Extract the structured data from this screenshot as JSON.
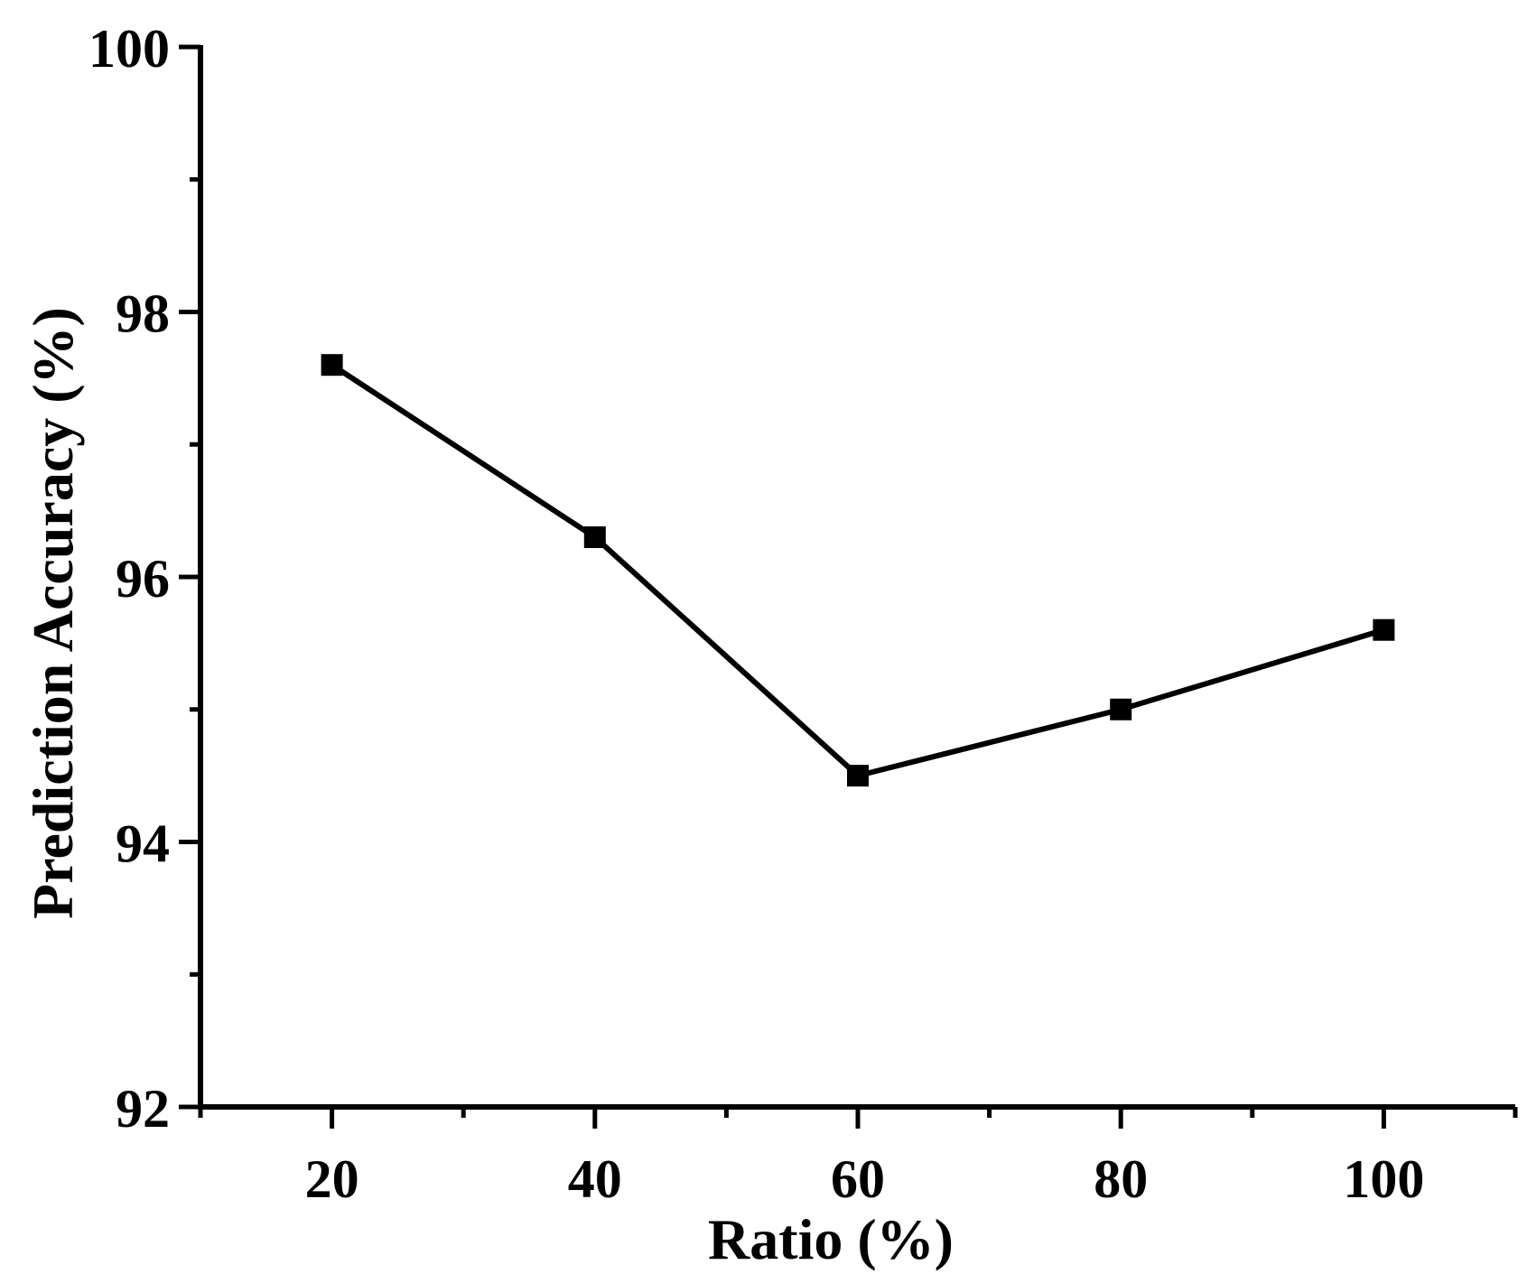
{
  "chart_data": {
    "type": "line",
    "title": "",
    "xlabel": "Ratio (%)",
    "ylabel": "Prediction Accuracy (%)",
    "x": [
      20,
      40,
      60,
      80,
      100
    ],
    "series": [
      {
        "name": "Prediction Accuracy",
        "values": [
          97.6,
          96.3,
          94.5,
          95.0,
          95.6
        ],
        "marker": "square"
      }
    ],
    "xlim": [
      10,
      110
    ],
    "ylim": [
      92,
      100
    ],
    "xticks_major": [
      20,
      40,
      60,
      80,
      100
    ],
    "xticks_minor": [
      10,
      30,
      50,
      70,
      90,
      110
    ],
    "yticks_major": [
      92,
      94,
      96,
      98,
      100
    ],
    "yticks_minor": [
      93,
      95,
      97,
      99
    ],
    "xtick_labels": [
      "20",
      "40",
      "60",
      "80",
      "100"
    ],
    "ytick_labels": [
      "92",
      "94",
      "96",
      "98",
      "100"
    ],
    "grid": false,
    "legend": "none",
    "colors": {
      "line": "#000000",
      "marker": "#000000",
      "axis": "#000000"
    }
  }
}
